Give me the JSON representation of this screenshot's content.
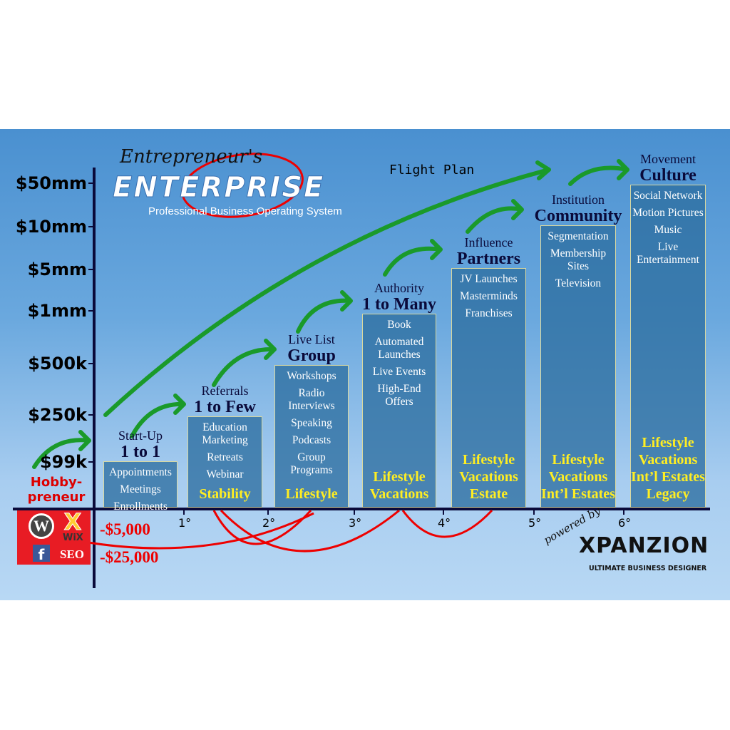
{
  "logo": {
    "script": "Entrepreneur's",
    "main": "ENTERPRISE",
    "tagline": "Professional Business Operating System"
  },
  "flight_plan": "Flight Plan",
  "y_axis": [
    "$50mm",
    "$10mm",
    "$5mm",
    "$1mm",
    "$500k",
    "$250k",
    "$99k"
  ],
  "hobby": "Hobby-\npreneur",
  "x_ticks": [
    "1°",
    "2°",
    "3°",
    "4°",
    "5°",
    "6°"
  ],
  "negatives": [
    "-$5,000",
    "-$25,000"
  ],
  "icons_box": {
    "items": [
      "wordpress-icon",
      "wix-icon",
      "facebook-icon"
    ],
    "wix": "WiX",
    "seo": "SEO"
  },
  "stages": [
    {
      "top": "Start-Up",
      "title": "1 to 1",
      "items": [
        "Appointments",
        "Meetings",
        "Enrollments"
      ],
      "yellow": ""
    },
    {
      "top": "Referrals",
      "title": "1 to Few",
      "items": [
        "Education Marketing",
        "Retreats",
        "Webinar"
      ],
      "yellow": "Stability"
    },
    {
      "top": "Live List",
      "title": "Group",
      "items": [
        "Workshops",
        "Radio Interviews",
        "Speaking",
        "Podcasts",
        "Group Programs"
      ],
      "yellow": "Lifestyle"
    },
    {
      "top": "Authority",
      "title": "1 to Many",
      "items": [
        "Book",
        "Automated Launches",
        "Live Events",
        "High-End Offers"
      ],
      "yellow": "Lifestyle Vacations"
    },
    {
      "top": "Influence",
      "title": "Partners",
      "items": [
        "JV Launches",
        "Masterminds",
        "Franchises"
      ],
      "yellow": "Lifestyle Vacations Estate"
    },
    {
      "top": "Institution",
      "title": "Community",
      "items": [
        "Segmentation",
        "Membership Sites",
        "Television"
      ],
      "yellow": "Lifestyle Vacations Int’l Estates"
    },
    {
      "top": "Movement",
      "title": "Culture",
      "items": [
        "Social Network",
        "Motion Pictures",
        "Music",
        "Live Entertainment"
      ],
      "yellow": "Lifestyle Vacations Int’l Estates Legacy"
    }
  ],
  "brand": {
    "powered": "powered by",
    "name": "XPANZION",
    "sub": "ULTIMATE BUSINESS DESIGNER"
  },
  "colors": {
    "green_arrow": "#1a9a2a",
    "red": "#e00000",
    "box": "#2d6ea0",
    "yellow": "#ffee22"
  }
}
